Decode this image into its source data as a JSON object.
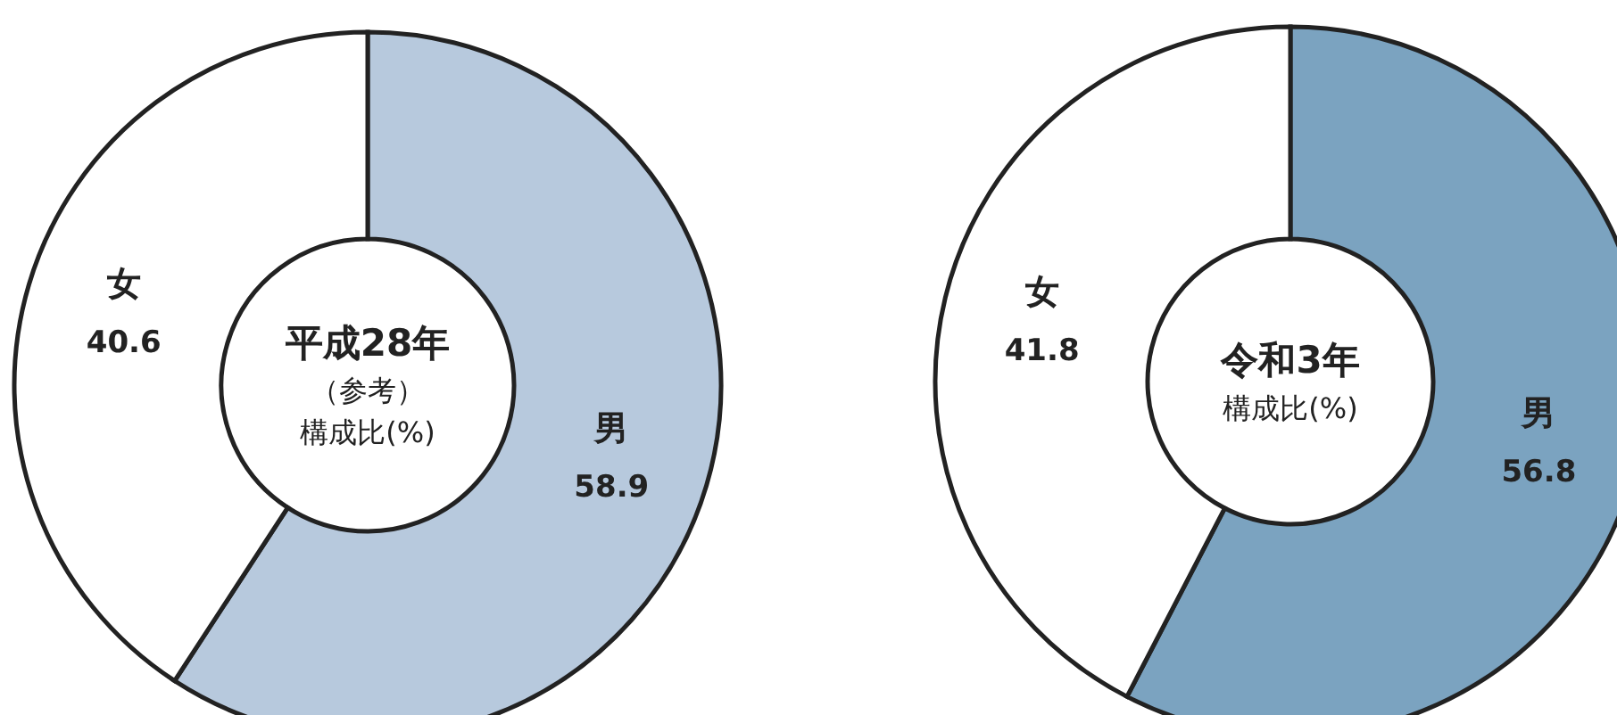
{
  "chart_data": [
    {
      "type": "donut",
      "title": "平成28年",
      "subtitle": "（参考）",
      "annotations": [
        "構成比(%)"
      ],
      "categories": [
        "男",
        "女"
      ],
      "values": [
        58.9,
        40.6
      ],
      "colors": [
        "#b7c9dd",
        "#ffffff"
      ],
      "data_labels": true
    },
    {
      "type": "donut",
      "title": "令和3年",
      "annotations": [
        "構成比(%)"
      ],
      "categories": [
        "男",
        "女"
      ],
      "values": [
        56.8,
        41.8
      ],
      "colors": [
        "#7ba3c0",
        "#ffffff"
      ],
      "data_labels": true
    }
  ]
}
